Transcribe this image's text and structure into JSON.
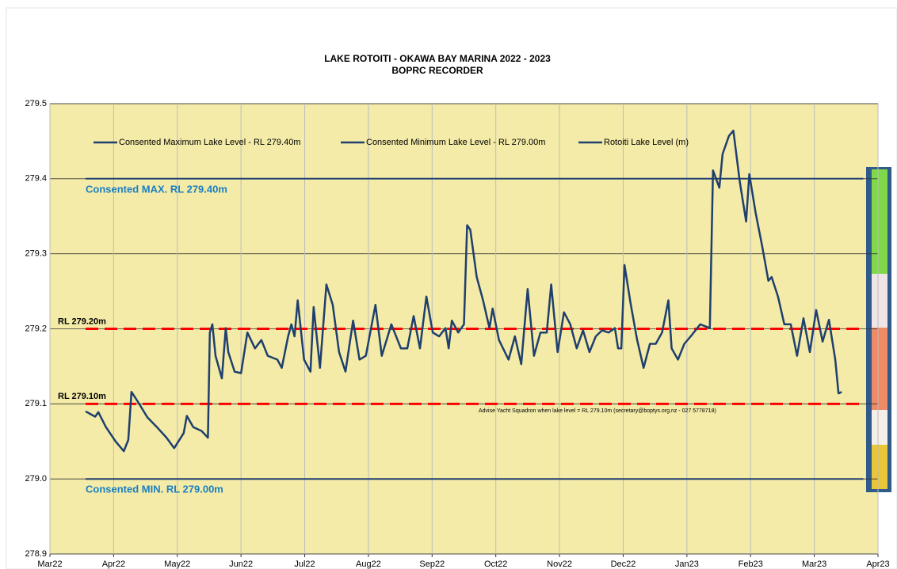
{
  "chart_data": {
    "type": "line",
    "title": "LAKE ROTOITI - OKAWA BAY MARINA 2022 - 2023",
    "subtitle": "BOPRC RECORDER",
    "xlim": [
      0,
      13
    ],
    "xticks": [
      {
        "value": 0,
        "label": "Mar22"
      },
      {
        "value": 1,
        "label": "Apr22"
      },
      {
        "value": 2,
        "label": "May22"
      },
      {
        "value": 3,
        "label": "Jun22"
      },
      {
        "value": 4,
        "label": "Jul22"
      },
      {
        "value": 5,
        "label": "Aug22"
      },
      {
        "value": 6,
        "label": "Sep22"
      },
      {
        "value": 7,
        "label": "Oct22"
      },
      {
        "value": 8,
        "label": "Nov22"
      },
      {
        "value": 9,
        "label": "Dec22"
      },
      {
        "value": 10,
        "label": "Jan23"
      },
      {
        "value": 11,
        "label": "Feb23"
      },
      {
        "value": 12,
        "label": "Mar23"
      },
      {
        "value": 13,
        "label": "Apr23"
      }
    ],
    "ylim": [
      278.9,
      279.5
    ],
    "yticks": [
      278.9,
      {
        "value": 279,
        "label": "279.0"
      },
      279.1,
      279.2,
      279.3,
      279.4,
      279.5
    ],
    "grid": true,
    "legend": "top",
    "series": [
      {
        "name": "Consented Maximum Lake Level - RL 279.40m",
        "color": "#1f3f6e",
        "x": [
          0.56,
          12.77
        ],
        "values": [
          279.4,
          279.4
        ]
      },
      {
        "name": "Consented Minimum Lake Level - RL 279.00m",
        "color": "#1f3f6e",
        "x": [
          0.56,
          12.77
        ],
        "values": [
          279.0,
          279.0
        ]
      },
      {
        "name": "Rotoiti Lake Level (m)",
        "color": "#1f3f6e",
        "x": [
          0.56,
          0.71,
          0.76,
          0.88,
          1.03,
          1.16,
          1.23,
          1.28,
          1.38,
          1.53,
          1.68,
          1.83,
          1.95,
          2.1,
          2.15,
          2.25,
          2.38,
          2.48,
          2.51,
          2.55,
          2.6,
          2.7,
          2.76,
          2.8,
          2.9,
          3.0,
          3.1,
          3.22,
          3.32,
          3.42,
          3.57,
          3.64,
          3.74,
          3.79,
          3.84,
          3.89,
          3.99,
          4.09,
          4.14,
          4.24,
          4.34,
          4.44,
          4.54,
          4.64,
          4.76,
          4.86,
          4.96,
          5.11,
          5.21,
          5.36,
          5.51,
          5.61,
          5.71,
          5.81,
          5.91,
          6.01,
          6.11,
          6.21,
          6.26,
          6.31,
          6.41,
          6.5,
          6.55,
          6.6,
          6.7,
          6.8,
          6.9,
          6.95,
          7.05,
          7.2,
          7.3,
          7.4,
          7.5,
          7.6,
          7.7,
          7.8,
          7.87,
          7.97,
          8.07,
          8.17,
          8.27,
          8.37,
          8.47,
          8.57,
          8.67,
          8.77,
          8.87,
          8.92,
          8.97,
          9.02,
          9.12,
          9.22,
          9.32,
          9.42,
          9.51,
          9.61,
          9.71,
          9.76,
          9.86,
          9.96,
          10.06,
          10.21,
          10.36,
          10.41,
          10.51,
          10.56,
          10.66,
          10.73,
          10.83,
          10.93,
          10.98,
          11.08,
          11.18,
          11.28,
          11.33,
          11.43,
          11.53,
          11.63,
          11.73,
          11.83,
          11.93,
          12.03,
          12.13,
          12.23,
          12.33,
          12.38,
          12.43
        ],
        "values": [
          279.09,
          279.083,
          279.089,
          279.069,
          279.05,
          279.037,
          279.052,
          279.116,
          279.103,
          279.082,
          279.069,
          279.055,
          279.041,
          279.061,
          279.084,
          279.069,
          279.064,
          279.055,
          279.195,
          279.206,
          279.164,
          279.134,
          279.201,
          279.169,
          279.143,
          279.141,
          279.195,
          279.174,
          279.185,
          279.164,
          279.159,
          279.148,
          279.19,
          279.206,
          279.19,
          279.238,
          279.159,
          279.143,
          279.229,
          279.148,
          279.259,
          279.232,
          279.169,
          279.143,
          279.211,
          279.159,
          279.164,
          279.232,
          279.164,
          279.206,
          279.174,
          279.174,
          279.217,
          279.174,
          279.243,
          279.195,
          279.19,
          279.201,
          279.174,
          279.211,
          279.195,
          279.206,
          279.338,
          279.332,
          279.269,
          279.238,
          279.201,
          279.227,
          279.185,
          279.159,
          279.19,
          279.153,
          279.253,
          279.164,
          279.195,
          279.195,
          279.259,
          279.169,
          279.222,
          279.206,
          279.174,
          279.198,
          279.169,
          279.19,
          279.198,
          279.195,
          279.201,
          279.174,
          279.174,
          279.285,
          279.232,
          279.185,
          279.148,
          279.18,
          279.18,
          279.195,
          279.238,
          279.174,
          279.159,
          279.18,
          279.19,
          279.206,
          279.201,
          279.411,
          279.388,
          279.433,
          279.457,
          279.464,
          279.396,
          279.343,
          279.406,
          279.354,
          279.311,
          279.264,
          279.269,
          279.243,
          279.206,
          279.206,
          279.164,
          279.214,
          279.169,
          279.225,
          279.183,
          279.212,
          279.159,
          279.114,
          279.116
        ]
      }
    ],
    "reference_lines": [
      {
        "value": 279.2,
        "label": "RL 279.20m",
        "color": "#ff0000"
      },
      {
        "value": 279.1,
        "label": "RL 279.10m",
        "color": "#ff0000"
      }
    ],
    "annotations": [
      "Consented MAX. RL 279.40m",
      "Consented MIN. RL 279.00m",
      "Advise Yacht Squadron when lake level = RL 279.10m (secretary@boptys.org.nz - 027 5778718)"
    ]
  }
}
